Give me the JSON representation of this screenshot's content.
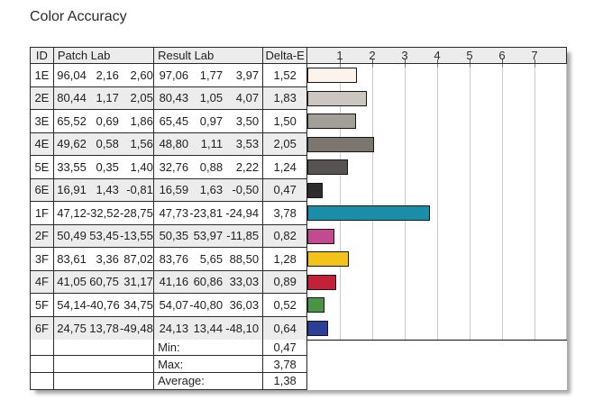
{
  "title": "Color Accuracy",
  "colors": {
    "table_border": "#2a2a2a",
    "header_bg": "#ececec",
    "alt_row_bg": "#ececec",
    "grid_line": "#cbcbcb",
    "bar_border": "#161616"
  },
  "table": {
    "columns": {
      "id": "ID",
      "patch": "Patch Lab",
      "result": "Result Lab",
      "delta": "Delta-E"
    },
    "rows": [
      {
        "id": "1E",
        "patch": [
          "96,04",
          "2,16",
          "2,60"
        ],
        "result": [
          "97,06",
          "1,77",
          "3,97"
        ],
        "delta": "1,52"
      },
      {
        "id": "2E",
        "patch": [
          "80,44",
          "1,17",
          "2,05"
        ],
        "result": [
          "80,43",
          "1,05",
          "4,07"
        ],
        "delta": "1,83"
      },
      {
        "id": "3E",
        "patch": [
          "65,52",
          "0,69",
          "1,86"
        ],
        "result": [
          "65,45",
          "0,97",
          "3,50"
        ],
        "delta": "1,50"
      },
      {
        "id": "4E",
        "patch": [
          "49,62",
          "0,58",
          "1,56"
        ],
        "result": [
          "48,80",
          "1,11",
          "3,53"
        ],
        "delta": "2,05"
      },
      {
        "id": "5E",
        "patch": [
          "33,55",
          "0,35",
          "1,40"
        ],
        "result": [
          "32,76",
          "0,88",
          "2,22"
        ],
        "delta": "1,24"
      },
      {
        "id": "6E",
        "patch": [
          "16,91",
          "1,43",
          "-0,81"
        ],
        "result": [
          "16,59",
          "1,63",
          "-0,50"
        ],
        "delta": "0,47"
      },
      {
        "id": "1F",
        "patch": [
          "47,12",
          "-32,52",
          "-28,75"
        ],
        "result": [
          "47,73",
          "-23,81",
          "-24,94"
        ],
        "delta": "3,78"
      },
      {
        "id": "2F",
        "patch": [
          "50,49",
          "53,45",
          "-13,55"
        ],
        "result": [
          "50,35",
          "53,97",
          "-11,85"
        ],
        "delta": "0,82"
      },
      {
        "id": "3F",
        "patch": [
          "83,61",
          "3,36",
          "87,02"
        ],
        "result": [
          "83,76",
          "5,65",
          "88,50"
        ],
        "delta": "1,28"
      },
      {
        "id": "4F",
        "patch": [
          "41,05",
          "60,75",
          "31,17"
        ],
        "result": [
          "41,16",
          "60,86",
          "33,03"
        ],
        "delta": "0,89"
      },
      {
        "id": "5F",
        "patch": [
          "54,14",
          "-40,76",
          "34,75"
        ],
        "result": [
          "54,07",
          "-40,80",
          "36,03"
        ],
        "delta": "0,52"
      },
      {
        "id": "6F",
        "patch": [
          "24,75",
          "13,78",
          "-49,48"
        ],
        "result": [
          "24,13",
          "13,44",
          "-48,10"
        ],
        "delta": "0,64"
      }
    ],
    "summary": [
      {
        "label": "Min:",
        "value": "0,47"
      },
      {
        "label": "Max:",
        "value": "3,78"
      },
      {
        "label": "Average:",
        "value": "1,38"
      }
    ]
  },
  "chart_data": {
    "type": "bar",
    "orientation": "horizontal",
    "title": "Delta-E per color patch",
    "xlabel": "Delta-E",
    "categories": [
      "1E",
      "2E",
      "3E",
      "4E",
      "5E",
      "6E",
      "1F",
      "2F",
      "3F",
      "4F",
      "5F",
      "6F"
    ],
    "values": [
      1.52,
      1.83,
      1.5,
      2.05,
      1.24,
      0.47,
      3.78,
      0.82,
      1.28,
      0.89,
      0.52,
      0.64
    ],
    "bar_colors": [
      "#fbf3ec",
      "#cbc7c0",
      "#a29f98",
      "#7b7670",
      "#575350",
      "#2f2d2b",
      "#1a8da8",
      "#c14a90",
      "#f3c31a",
      "#c22138",
      "#4a9446",
      "#2b3f97"
    ],
    "xlim": [
      0,
      8
    ],
    "ticks": [
      1,
      2,
      3,
      4,
      5,
      6,
      7
    ],
    "grid": true,
    "legend": false,
    "summary": {
      "min": 0.47,
      "max": 3.78,
      "average": 1.38
    }
  }
}
